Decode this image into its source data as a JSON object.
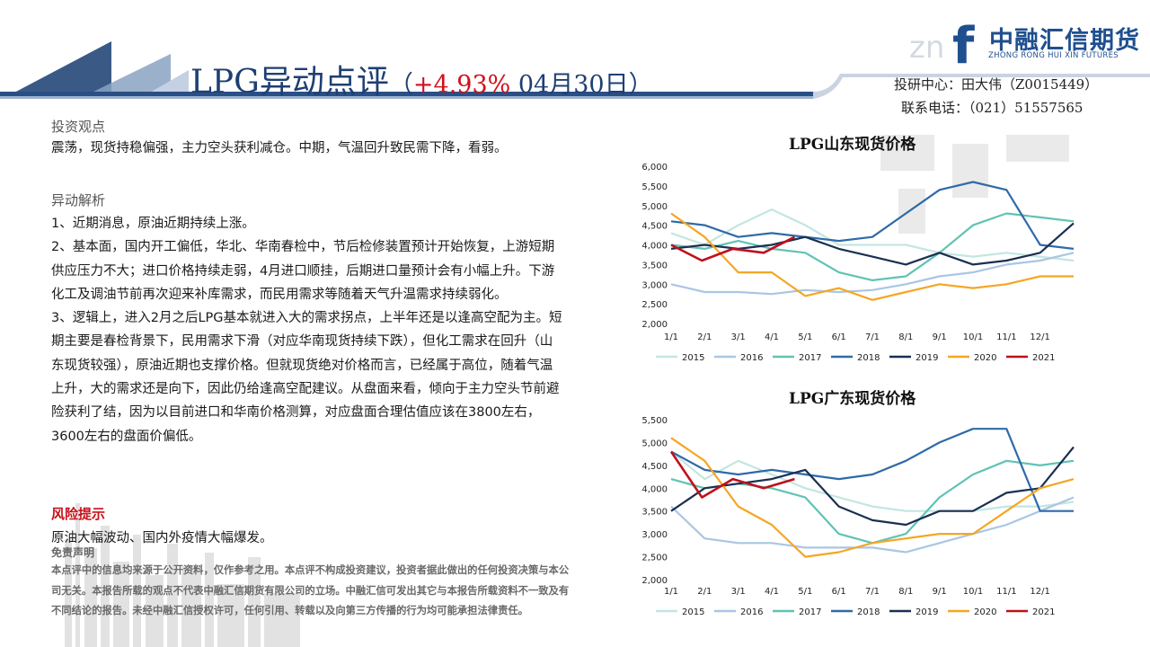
{
  "header": {
    "title_main": "LPG异动点评",
    "paren_open": "（",
    "change_pct": "+4.93%",
    "date": " 04月30日）"
  },
  "logo": {
    "name": "中融汇信期货",
    "english": "ZHONG RONG HUI XIN FUTURES",
    "mark": "f"
  },
  "contact": {
    "research": "投研中心：田大伟（Z0015449）",
    "phone": "联系电话：（021）51557565"
  },
  "view": {
    "heading": "投资观点",
    "text": "震荡，现货持稳偏强，主力空头获利减仓。中期，气温回升致民需下降，看弱。"
  },
  "analysis": {
    "heading": "异动解析",
    "p1": "1、近期消息，原油近期持续上涨。",
    "p2": "2、基本面，国内开工偏低，华北、华南春检中，节后检修装置预计开始恢复，上游短期供应压力不大；进口价格持续走弱，4月进口顺挂，后期进口量预计会有小幅上升。下游化工及调油节前再次迎来补库需求，而民用需求等随着天气升温需求持续弱化。",
    "p3": "3、逻辑上，进入2月之后LPG基本就进入大的需求拐点，上半年还是以逢高空配为主。短期主要是春检背景下，民用需求下滑（对应华南现货持续下跌），但化工需求在回升（山东现货较强），原油近期也支撑价格。但就现货绝对价格而言，已经属于高位，随着气温上升，大的需求还是向下，因此仍给逢高空配建议。从盘面来看，倾向于主力空头节前避险获利了结，因为以目前进口和华南价格测算，对应盘面合理估值应该在3800左右，3600左右的盘面价偏低。"
  },
  "risk": {
    "heading": "风险提示",
    "text": "原油大幅波动、国内外疫情大幅爆发。"
  },
  "disclaimer": {
    "heading": "免责声明",
    "text": "本点评中的信息均来源于公开资料，仅作参考之用。本点评不构成投资建议，投资者据此做出的任何投资决策与本公司无关。本报告所载的观点不代表中融汇信期货有限公司的立场。中融汇信可发出其它与本报告所载资料不一致及有不同结论的报告。未经中融汇信授权许可，任何引用、转载以及向第三方传播的行为均可能承担法律责任。"
  },
  "colors": {
    "2015": "#c3e6e2",
    "2016": "#a9c6e4",
    "2017": "#5fc3b3",
    "2018": "#2f6aa8",
    "2019": "#1a2f52",
    "2020": "#f5a623",
    "2021": "#c0101c"
  },
  "chart_data": [
    {
      "type": "line",
      "title": "LPG山东现货价格",
      "ylim": [
        2000,
        6000
      ],
      "yticks": [
        "2,000",
        "2,500",
        "3,000",
        "3,500",
        "4,000",
        "4,500",
        "5,000",
        "5,500",
        "6,000"
      ],
      "xticks": [
        "1/1",
        "2/1",
        "3/1",
        "4/1",
        "5/1",
        "6/1",
        "7/1",
        "8/1",
        "9/1",
        "10/1",
        "11/1",
        "12/1"
      ],
      "grid": false,
      "legend": "bottom",
      "series": [
        {
          "name": "2015",
          "values": [
            4300,
            4000,
            4500,
            4900,
            4500,
            4000,
            4000,
            4000,
            3800,
            3700,
            3800,
            3700,
            3600
          ]
        },
        {
          "name": "2016",
          "values": [
            3000,
            2800,
            2800,
            2750,
            2850,
            2800,
            2850,
            3000,
            3200,
            3300,
            3500,
            3600,
            3800
          ]
        },
        {
          "name": "2017",
          "values": [
            4000,
            3900,
            4100,
            3900,
            3800,
            3300,
            3100,
            3200,
            3800,
            4500,
            4800,
            4700,
            4600
          ]
        },
        {
          "name": "2018",
          "values": [
            4600,
            4500,
            4200,
            4300,
            4200,
            4100,
            4200,
            4800,
            5400,
            5600,
            5400,
            4000,
            3900
          ]
        },
        {
          "name": "2019",
          "values": [
            3900,
            4000,
            3900,
            4000,
            4200,
            3900,
            3700,
            3500,
            3800,
            3500,
            3600,
            3800,
            4550
          ]
        },
        {
          "name": "2020",
          "values": [
            4800,
            4200,
            3300,
            3300,
            2700,
            2900,
            2600,
            2800,
            3000,
            2900,
            3000,
            3200,
            3200
          ]
        },
        {
          "name": "2021",
          "values": [
            4000,
            3600,
            3900,
            3800,
            4200
          ]
        }
      ]
    },
    {
      "type": "line",
      "title": "LPG广东现货价格",
      "ylim": [
        2000,
        5500
      ],
      "yticks": [
        "2,000",
        "2,500",
        "3,000",
        "3,500",
        "4,000",
        "4,500",
        "5,000",
        "5,500"
      ],
      "xticks": [
        "1/1",
        "2/1",
        "3/1",
        "4/1",
        "5/1",
        "6/1",
        "7/1",
        "8/1",
        "9/1",
        "10/1",
        "11/1",
        "12/1"
      ],
      "grid": false,
      "legend": "bottom",
      "series": [
        {
          "name": "2015",
          "values": [
            4800,
            4200,
            4600,
            4300,
            4000,
            3800,
            3600,
            3500,
            3500,
            3500,
            3600,
            3600,
            3700
          ]
        },
        {
          "name": "2016",
          "values": [
            3600,
            2900,
            2800,
            2800,
            2700,
            2700,
            2700,
            2600,
            2800,
            3000,
            3200,
            3500,
            3800
          ]
        },
        {
          "name": "2017",
          "values": [
            4200,
            4000,
            4100,
            4000,
            3800,
            3000,
            2800,
            3000,
            3800,
            4300,
            4600,
            4500,
            4600
          ]
        },
        {
          "name": "2018",
          "values": [
            4800,
            4400,
            4300,
            4400,
            4300,
            4200,
            4300,
            4600,
            5000,
            5300,
            5300,
            3500,
            3500
          ]
        },
        {
          "name": "2019",
          "values": [
            3500,
            4000,
            4100,
            4200,
            4400,
            3600,
            3300,
            3200,
            3500,
            3500,
            3900,
            4000,
            4900
          ]
        },
        {
          "name": "2020",
          "values": [
            5100,
            4600,
            3600,
            3200,
            2500,
            2600,
            2800,
            2900,
            3000,
            3000,
            3500,
            4000,
            4200
          ]
        },
        {
          "name": "2021",
          "values": [
            4800,
            3800,
            4200,
            4000,
            4200
          ]
        }
      ]
    }
  ]
}
